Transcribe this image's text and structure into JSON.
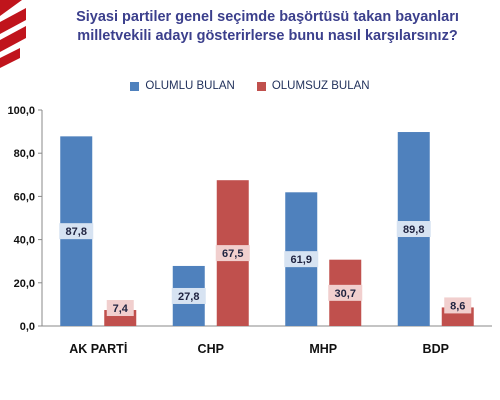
{
  "chart_data": {
    "type": "bar",
    "title": "Siyasi partiler genel seçimde başörtüsü takan bayanları",
    "subtitle": "milletvekili adayı gösterirlerse bunu nasıl karşılarsınız?",
    "categories": [
      "AK PARTİ",
      "CHP",
      "MHP",
      "BDP"
    ],
    "series": [
      {
        "name": "OLUMLU BULAN",
        "color": "#4f81bd",
        "values": [
          87.8,
          27.8,
          61.9,
          89.8
        ],
        "labels": [
          "87,8",
          "27,8",
          "61,9",
          "89,8"
        ]
      },
      {
        "name": "OLUMSUZ BULAN",
        "color": "#c0504d",
        "values": [
          7.4,
          67.5,
          30.7,
          8.6
        ],
        "labels": [
          "7,4",
          "67,5",
          "30,7",
          "8,6"
        ]
      }
    ],
    "ylim": [
      0,
      100
    ],
    "yticks": [
      "0,0",
      "20,0",
      "40,0",
      "60,0",
      "80,0",
      "100,0"
    ],
    "grid": false,
    "legend_position": "top"
  }
}
